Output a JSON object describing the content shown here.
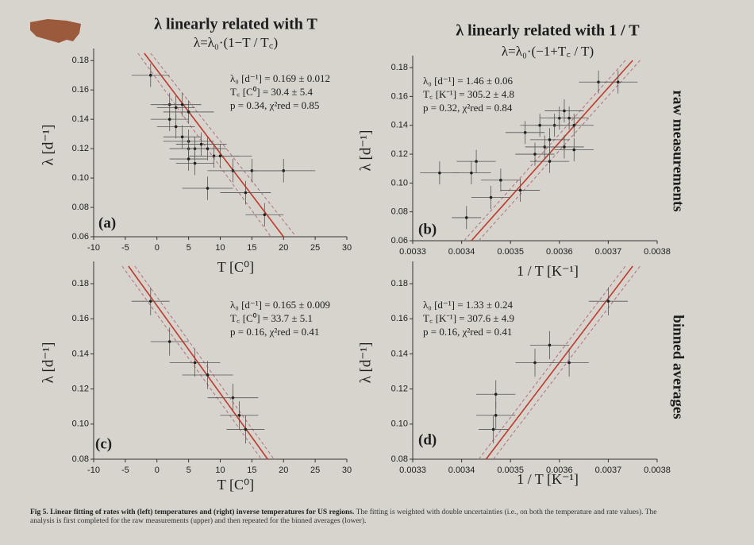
{
  "column_titles": [
    {
      "title": "λ linearly related with T",
      "formula": "λ=λ₀·(1−T / T꜀)"
    },
    {
      "title": "λ linearly related with 1 / T",
      "formula": "λ=λ₀·(−1+T꜀ / T)"
    }
  ],
  "row_labels": [
    "raw measurements",
    "binned averages"
  ],
  "chart_data": [
    {
      "type": "scatter",
      "panel_label": "(a)",
      "xlabel": "T  [C⁰]",
      "ylabel": "λ [d⁻¹]",
      "stats": [
        "λ₀ [d⁻¹] = 0.169 ± 0.012",
        "T꜀ [C⁰] = 30.4 ± 5.4",
        "p = 0.34, χ²red = 0.85"
      ],
      "x": [
        -1,
        2,
        3,
        4,
        5,
        2,
        3,
        4,
        5,
        5,
        6,
        5,
        6,
        7,
        8,
        9,
        10,
        12,
        15,
        20,
        8,
        14,
        17
      ],
      "values": [
        0.17,
        0.15,
        0.148,
        0.15,
        0.145,
        0.14,
        0.135,
        0.128,
        0.125,
        0.12,
        0.12,
        0.113,
        0.11,
        0.123,
        0.12,
        0.115,
        0.115,
        0.105,
        0.105,
        0.105,
        0.093,
        0.09,
        0.075
      ],
      "xerr": [
        3,
        3,
        3,
        3,
        4,
        3,
        3,
        3,
        4,
        3,
        4,
        3,
        3,
        4,
        3,
        4,
        5,
        4,
        5,
        5,
        4,
        4,
        3
      ],
      "yerr": [
        0.008,
        0.008,
        0.008,
        0.008,
        0.008,
        0.008,
        0.008,
        0.008,
        0.008,
        0.008,
        0.008,
        0.008,
        0.008,
        0.008,
        0.008,
        0.008,
        0.008,
        0.008,
        0.008,
        0.008,
        0.008,
        0.008,
        0.008
      ],
      "fit": {
        "x": [
          -2,
          20
        ],
        "values": [
          0.185,
          0.06
        ]
      },
      "band_upper": {
        "x": [
          -1,
          22
        ],
        "values": [
          0.185,
          0.06
        ]
      },
      "band_lower": {
        "x": [
          -3,
          18
        ],
        "values": [
          0.185,
          0.06
        ]
      },
      "xlim": [
        -10,
        30
      ],
      "ylim": [
        0.06,
        0.185
      ],
      "xticks": [
        -10,
        -5,
        0,
        5,
        10,
        15,
        20,
        25,
        30
      ],
      "yticks": [
        0.06,
        0.08,
        {
          "value": 0.1,
          "label": "0.10"
        },
        0.12,
        0.14,
        0.16,
        0.18
      ],
      "color": "#222222",
      "fit_color": "#c0392b",
      "band_color": "#b07080"
    },
    {
      "type": "scatter",
      "panel_label": "(b)",
      "xlabel": "1 / T  [K⁻¹]",
      "ylabel": "λ [d⁻¹]",
      "stats": [
        "λ₀ [d⁻¹] = 1.46 ± 0.06",
        "T꜀ [K⁻¹] = 305.2 ± 4.8",
        "p = 0.32, χ²red = 0.84"
      ],
      "x": [
        0.003355,
        0.00342,
        0.00343,
        0.00348,
        0.00346,
        0.00341,
        0.00352,
        0.00355,
        0.00357,
        0.00358,
        0.00359,
        0.0036,
        0.00361,
        0.00362,
        0.00363,
        0.00358,
        0.00361,
        0.00363,
        0.00368,
        0.00372,
        0.00353,
        0.00356
      ],
      "values": [
        0.107,
        0.107,
        0.115,
        0.102,
        0.09,
        0.076,
        0.095,
        0.12,
        0.125,
        0.13,
        0.14,
        0.145,
        0.15,
        0.145,
        0.14,
        0.115,
        0.125,
        0.123,
        0.17,
        0.17,
        0.135,
        0.14
      ],
      "xerr": [
        4e-05,
        4e-05,
        4e-05,
        4e-05,
        4e-05,
        3e-05,
        4e-05,
        4e-05,
        4e-05,
        4e-05,
        4e-05,
        4e-05,
        4e-05,
        4e-05,
        4e-05,
        4e-05,
        4e-05,
        4e-05,
        4e-05,
        4e-05,
        4e-05,
        4e-05
      ],
      "yerr": [
        0.008,
        0.008,
        0.008,
        0.008,
        0.008,
        0.008,
        0.008,
        0.008,
        0.008,
        0.008,
        0.008,
        0.008,
        0.008,
        0.008,
        0.008,
        0.008,
        0.008,
        0.008,
        0.008,
        0.008,
        0.008,
        0.008
      ],
      "fit": {
        "x": [
          0.00342,
          0.00375
        ],
        "values": [
          0.06,
          0.185
        ]
      },
      "band_upper": {
        "x": [
          0.003405,
          0.003735
        ],
        "values": [
          0.06,
          0.185
        ]
      },
      "band_lower": {
        "x": [
          0.003435,
          0.003765
        ],
        "values": [
          0.06,
          0.185
        ]
      },
      "xlim": [
        0.0033,
        0.0038
      ],
      "ylim": [
        0.06,
        0.185
      ],
      "xticks": [
        0.0033,
        0.0034,
        0.0035,
        0.0036,
        0.0037,
        0.0038
      ],
      "yticks": [
        0.06,
        0.08,
        {
          "value": 0.1,
          "label": "0.10"
        },
        0.12,
        0.14,
        0.16,
        0.18
      ],
      "color": "#222222",
      "fit_color": "#c0392b",
      "band_color": "#b07080"
    },
    {
      "type": "scatter",
      "panel_label": "(c)",
      "xlabel": "T  [C⁰]",
      "ylabel": "λ [d⁻¹]",
      "stats": [
        "λ₀ [d⁻¹] = 0.165 ± 0.009",
        "T꜀ [C⁰] = 33.7 ± 5.1",
        "p = 0.16, χ²red = 0.41"
      ],
      "x": [
        -1,
        2,
        6,
        8,
        12,
        13,
        14
      ],
      "values": [
        0.17,
        0.147,
        0.135,
        0.128,
        0.115,
        0.105,
        0.097
      ],
      "xerr": [
        3,
        3,
        4,
        4,
        4,
        3,
        3
      ],
      "yerr": [
        0.008,
        0.008,
        0.008,
        0.008,
        0.008,
        0.008,
        0.008
      ],
      "fit": {
        "x": [
          -4.5,
          17.5
        ],
        "values": [
          0.19,
          0.08
        ]
      },
      "band_upper": {
        "x": [
          -3.5,
          18.5
        ],
        "values": [
          0.19,
          0.08
        ]
      },
      "band_lower": {
        "x": [
          -5.5,
          16.5
        ],
        "values": [
          0.19,
          0.08
        ]
      },
      "xlim": [
        -10,
        30
      ],
      "ylim": [
        0.08,
        0.19
      ],
      "xticks": [
        -10,
        -5,
        0,
        5,
        10,
        15,
        20,
        25,
        30
      ],
      "yticks": [
        0.08,
        {
          "value": 0.1,
          "label": "0.10"
        },
        0.12,
        0.14,
        0.16,
        0.18
      ],
      "color": "#222222",
      "fit_color": "#c0392b",
      "band_color": "#b07080"
    },
    {
      "type": "scatter",
      "panel_label": "(d)",
      "xlabel": "1 / T  [K⁻¹]",
      "ylabel": "λ [d⁻¹]",
      "stats": [
        "λ₀ [d⁻¹] = 1.33 ± 0.24",
        "T꜀ [K⁻¹] = 307.6 ± 4.9",
        "p = 0.16, χ²red = 0.41"
      ],
      "x": [
        0.003465,
        0.00347,
        0.00347,
        0.00355,
        0.00358,
        0.00362,
        0.0037
      ],
      "values": [
        0.097,
        0.105,
        0.117,
        0.135,
        0.145,
        0.135,
        0.17
      ],
      "xerr": [
        3e-05,
        4e-05,
        4e-05,
        4e-05,
        4e-05,
        4e-05,
        4e-05
      ],
      "yerr": [
        0.008,
        0.008,
        0.008,
        0.008,
        0.008,
        0.008,
        0.008
      ],
      "fit": {
        "x": [
          0.00345,
          0.00375
        ],
        "values": [
          0.08,
          0.19
        ]
      },
      "band_upper": {
        "x": [
          0.003435,
          0.003735
        ],
        "values": [
          0.08,
          0.19
        ]
      },
      "band_lower": {
        "x": [
          0.003465,
          0.003765
        ],
        "values": [
          0.08,
          0.19
        ]
      },
      "xlim": [
        0.0033,
        0.0038
      ],
      "ylim": [
        0.08,
        0.19
      ],
      "xticks": [
        0.0033,
        0.0034,
        0.0035,
        0.0036,
        0.0037,
        0.0038
      ],
      "yticks": [
        0.08,
        {
          "value": 0.1,
          "label": "0.10"
        },
        0.12,
        0.14,
        0.16,
        0.18
      ],
      "color": "#222222",
      "fit_color": "#c0392b",
      "band_color": "#b07080"
    }
  ],
  "caption": {
    "bold": "Fig 5.  Linear fitting of rates with (left) temperatures and (right) inverse temperatures for US regions.",
    "text": "The fitting is weighted with double uncertainties (i.e., on both the temperature and rate values). The analysis is first completed for the raw measurements (upper) and then repeated for the binned averages (lower)."
  }
}
